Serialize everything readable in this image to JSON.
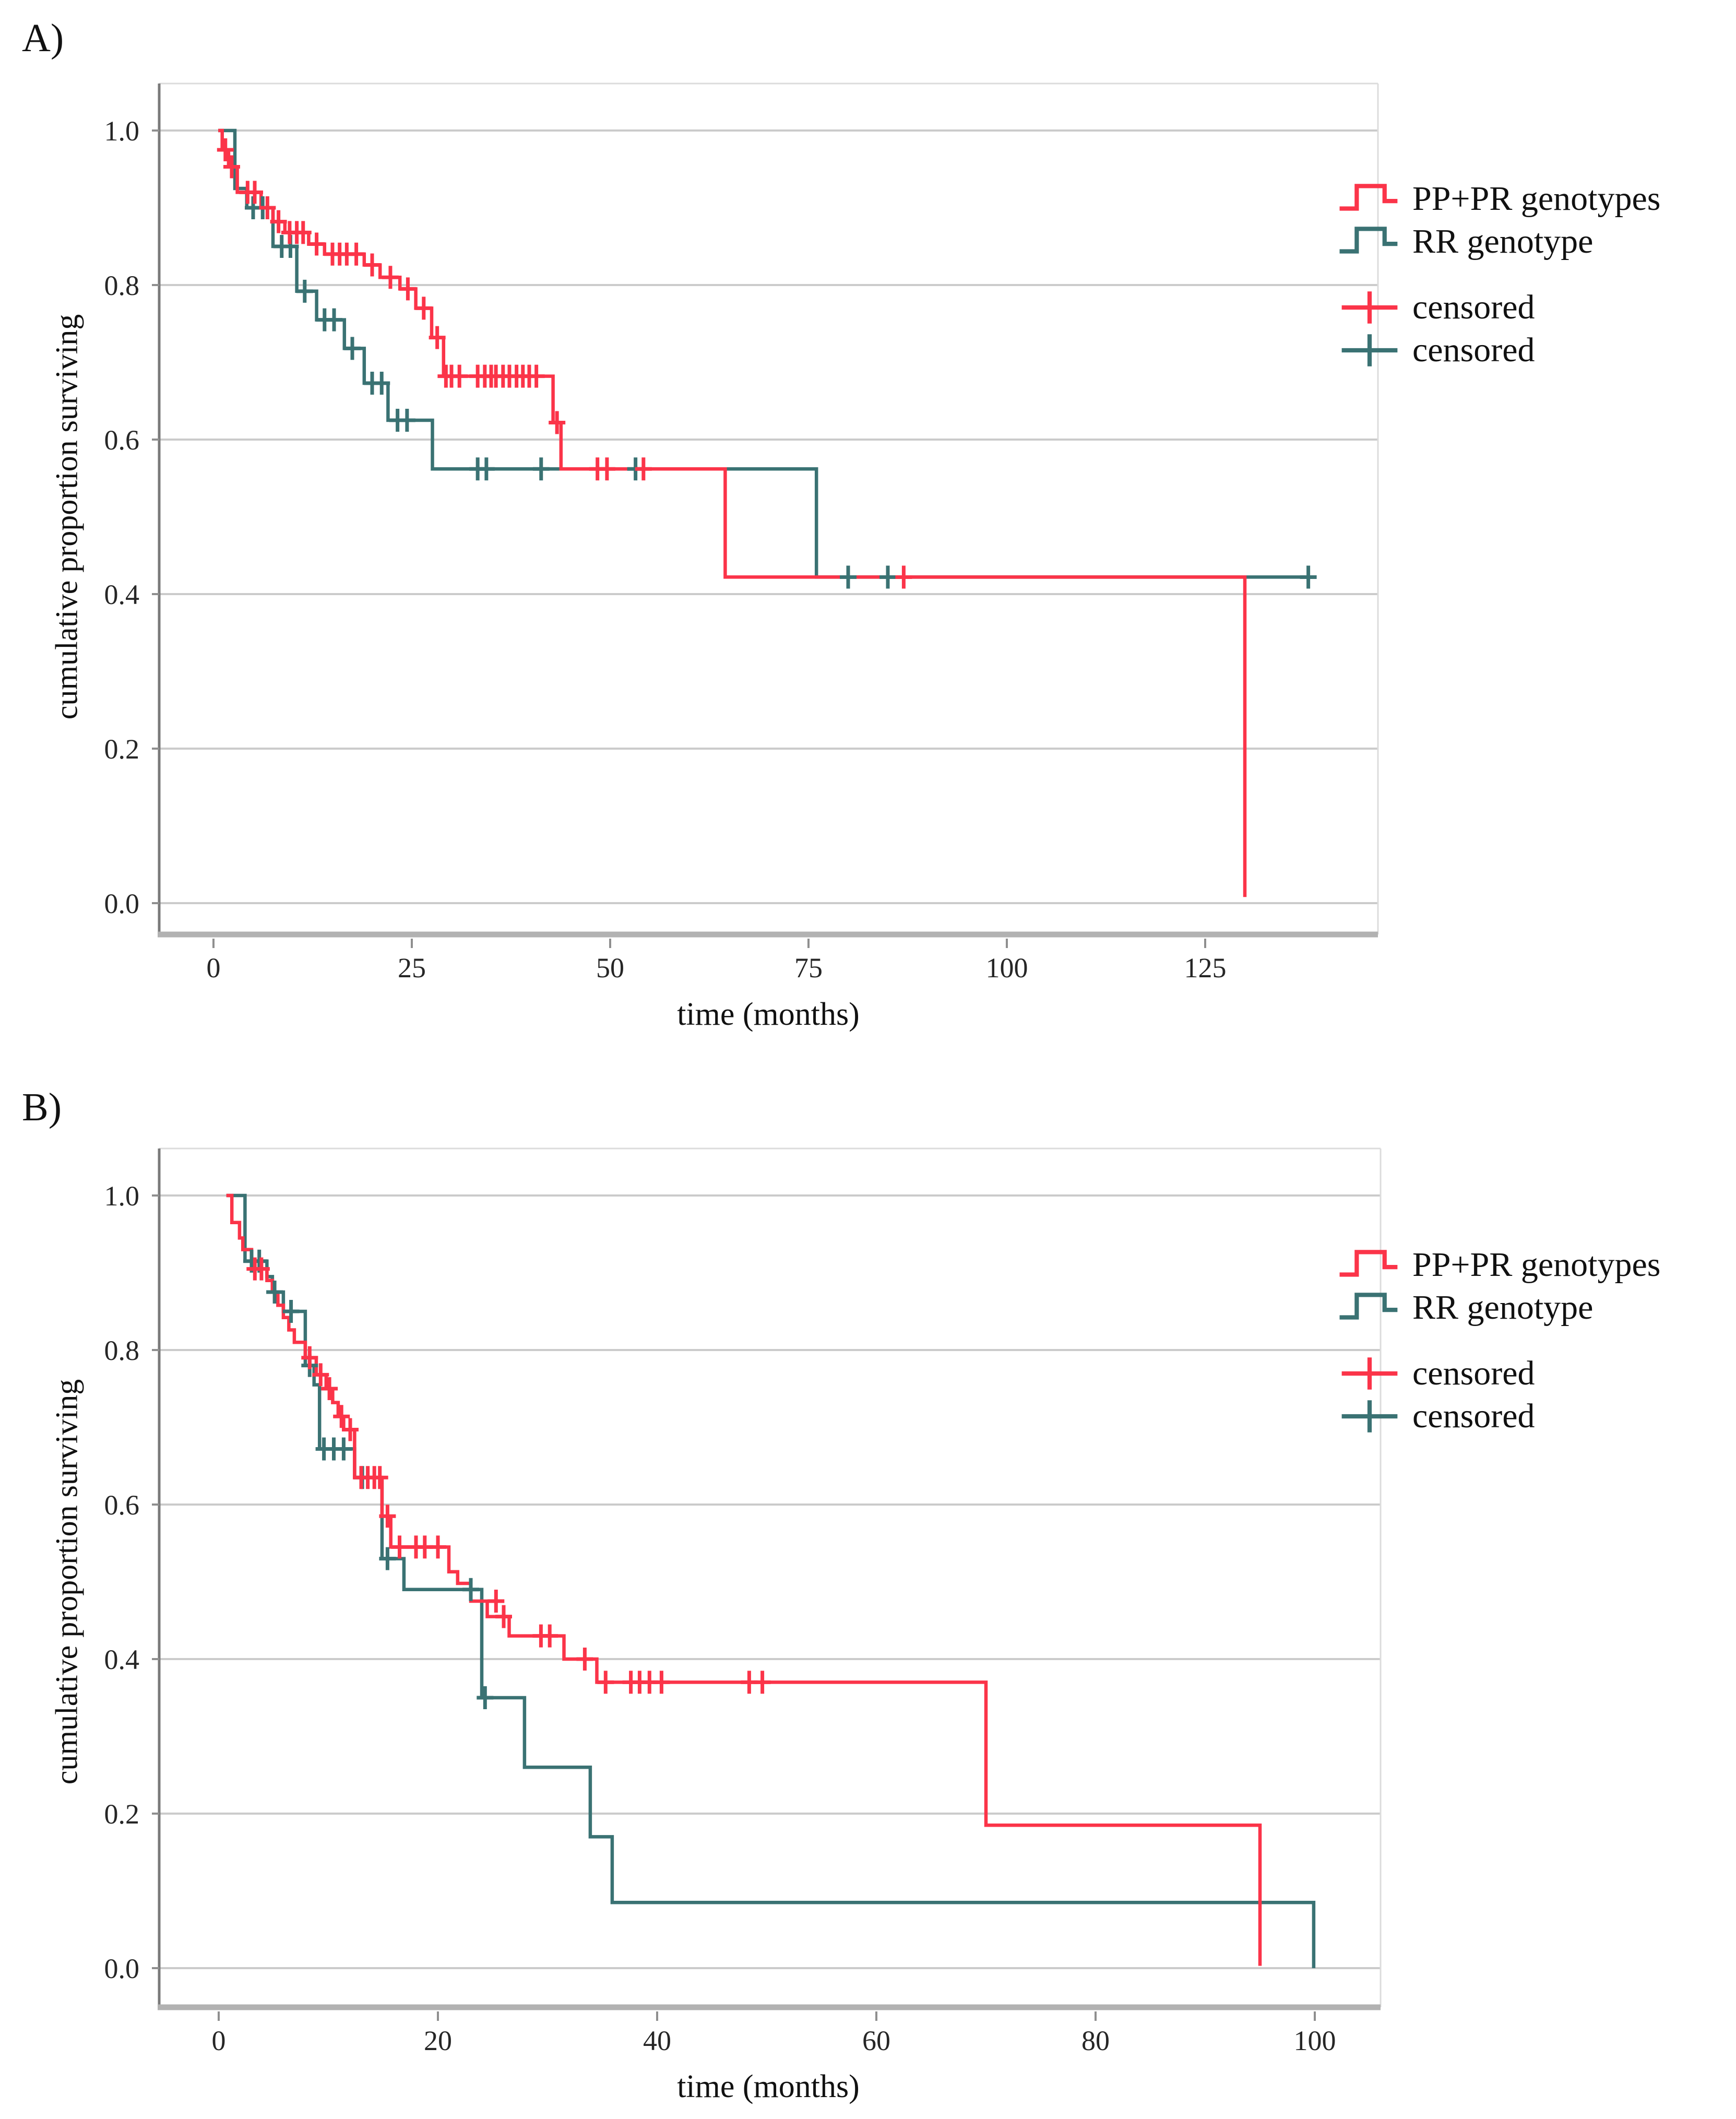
{
  "figure": {
    "panel_a_letter": "A)",
    "panel_b_letter": "B)"
  },
  "colors": {
    "pp_pr": "#fb3449",
    "rr": "#3a7273",
    "grid": "#cbcbcb",
    "frame": "#dcdcdc",
    "axis_y": "#7a7a7a",
    "axis_x": "#b2b2b2",
    "tick": "#8f8f8f",
    "text": "#262626"
  },
  "legend": {
    "items": [
      {
        "label": "PP+PR genotypes",
        "symbol": "step",
        "series": "pp_pr"
      },
      {
        "label": "RR genotype",
        "symbol": "step",
        "series": "rr"
      },
      {
        "label": "censored",
        "symbol": "plus",
        "series": "pp_pr"
      },
      {
        "label": "censored",
        "symbol": "plus",
        "series": "rr"
      }
    ]
  },
  "chart_data": [
    {
      "id": "A",
      "type": "line",
      "subtype": "kaplan-meier-step",
      "title": "A)",
      "xlabel": "time (months)",
      "ylabel": "cumulative proportion surviving",
      "x_ticks": [
        0,
        25,
        50,
        75,
        100,
        125
      ],
      "y_tick_labels": [
        "1.0",
        "0.8",
        "0.6",
        "0.4",
        "0.2",
        "0.0"
      ],
      "xlim": [
        0,
        147
      ],
      "ylim": [
        0.0,
        1.05
      ],
      "grid": true,
      "legend_position": "right-top",
      "series": [
        {
          "name": "PP+PR genotypes",
          "key": "pp_pr",
          "steps": [
            [
              0.6,
              1.0
            ],
            [
              1.1,
              1.0
            ],
            [
              1.1,
              0.975
            ],
            [
              1.9,
              0.975
            ],
            [
              1.9,
              0.953
            ],
            [
              3,
              0.953
            ],
            [
              3,
              0.92
            ],
            [
              6,
              0.92
            ],
            [
              6,
              0.9
            ],
            [
              7.5,
              0.9
            ],
            [
              7.5,
              0.882
            ],
            [
              9,
              0.882
            ],
            [
              9,
              0.868
            ],
            [
              12,
              0.868
            ],
            [
              12,
              0.853
            ],
            [
              14,
              0.853
            ],
            [
              14,
              0.84
            ],
            [
              19,
              0.84
            ],
            [
              19,
              0.826
            ],
            [
              21,
              0.826
            ],
            [
              21,
              0.81
            ],
            [
              23.5,
              0.81
            ],
            [
              23.5,
              0.795
            ],
            [
              25.5,
              0.795
            ],
            [
              25.5,
              0.77
            ],
            [
              27.5,
              0.77
            ],
            [
              27.5,
              0.732
            ],
            [
              29,
              0.732
            ],
            [
              29,
              0.682
            ],
            [
              42.8,
              0.682
            ],
            [
              42.8,
              0.622
            ],
            [
              43.8,
              0.622
            ],
            [
              43.8,
              0.562
            ],
            [
              64.5,
              0.562
            ],
            [
              64.5,
              0.422
            ],
            [
              130,
              0.422
            ],
            [
              130,
              0.008
            ]
          ],
          "censored": [
            [
              1.5,
              0.975
            ],
            [
              2.3,
              0.953
            ],
            [
              4.3,
              0.92
            ],
            [
              5.2,
              0.92
            ],
            [
              6.8,
              0.9
            ],
            [
              8.2,
              0.882
            ],
            [
              9.6,
              0.868
            ],
            [
              10.5,
              0.868
            ],
            [
              11.3,
              0.868
            ],
            [
              13,
              0.853
            ],
            [
              15,
              0.84
            ],
            [
              15.9,
              0.84
            ],
            [
              16.8,
              0.84
            ],
            [
              18,
              0.84
            ],
            [
              20,
              0.826
            ],
            [
              22.3,
              0.81
            ],
            [
              24.5,
              0.795
            ],
            [
              26.5,
              0.77
            ],
            [
              28.2,
              0.732
            ],
            [
              29.3,
              0.682
            ],
            [
              30,
              0.682
            ],
            [
              31,
              0.682
            ],
            [
              33.3,
              0.682
            ],
            [
              34.2,
              0.682
            ],
            [
              35,
              0.682
            ],
            [
              35.6,
              0.682
            ],
            [
              36.5,
              0.682
            ],
            [
              37.3,
              0.682
            ],
            [
              38.2,
              0.682
            ],
            [
              39,
              0.682
            ],
            [
              39.8,
              0.682
            ],
            [
              40.7,
              0.682
            ],
            [
              43.3,
              0.622
            ],
            [
              48.4,
              0.562
            ],
            [
              49.6,
              0.562
            ],
            [
              54.2,
              0.562
            ],
            [
              87,
              0.422
            ]
          ]
        },
        {
          "name": "RR genotype",
          "key": "rr",
          "steps": [
            [
              0.6,
              1.0
            ],
            [
              2.7,
              1.0
            ],
            [
              2.7,
              0.925
            ],
            [
              4.2,
              0.925
            ],
            [
              4.2,
              0.9
            ],
            [
              7.5,
              0.9
            ],
            [
              7.5,
              0.85
            ],
            [
              10.5,
              0.85
            ],
            [
              10.5,
              0.792
            ],
            [
              13,
              0.792
            ],
            [
              13,
              0.755
            ],
            [
              16.5,
              0.755
            ],
            [
              16.5,
              0.718
            ],
            [
              19,
              0.718
            ],
            [
              19,
              0.673
            ],
            [
              22,
              0.673
            ],
            [
              22,
              0.625
            ],
            [
              27.6,
              0.625
            ],
            [
              27.6,
              0.562
            ],
            [
              76,
              0.562
            ],
            [
              76,
              0.422
            ],
            [
              138,
              0.422
            ]
          ],
          "censored": [
            [
              5,
              0.9
            ],
            [
              6.2,
              0.9
            ],
            [
              8.6,
              0.85
            ],
            [
              9.7,
              0.85
            ],
            [
              11.5,
              0.792
            ],
            [
              14,
              0.755
            ],
            [
              15.2,
              0.755
            ],
            [
              17.5,
              0.718
            ],
            [
              20,
              0.673
            ],
            [
              21.2,
              0.673
            ],
            [
              23.2,
              0.625
            ],
            [
              24.4,
              0.625
            ],
            [
              33.3,
              0.562
            ],
            [
              34.4,
              0.562
            ],
            [
              41.3,
              0.562
            ],
            [
              53.2,
              0.562
            ],
            [
              80,
              0.422
            ],
            [
              85,
              0.422
            ],
            [
              138,
              0.422
            ]
          ]
        }
      ]
    },
    {
      "id": "B",
      "type": "line",
      "subtype": "kaplan-meier-step",
      "title": "B)",
      "xlabel": "time (months)",
      "ylabel": "cumulative proportion surviving",
      "x_ticks": [
        0,
        20,
        40,
        60,
        80,
        100
      ],
      "y_tick_labels": [
        "1.0",
        "0.8",
        "0.6",
        "0.4",
        "0.2",
        "0.0"
      ],
      "xlim": [
        0,
        106
      ],
      "ylim": [
        0.0,
        1.05
      ],
      "grid": true,
      "legend_position": "right-top",
      "series": [
        {
          "name": "PP+PR genotypes",
          "key": "pp_pr",
          "steps": [
            [
              0.7,
              1.0
            ],
            [
              1.2,
              1.0
            ],
            [
              1.2,
              0.965
            ],
            [
              1.9,
              0.965
            ],
            [
              1.9,
              0.945
            ],
            [
              2.2,
              0.945
            ],
            [
              2.2,
              0.93
            ],
            [
              3,
              0.93
            ],
            [
              3,
              0.905
            ],
            [
              4.4,
              0.905
            ],
            [
              4.4,
              0.89
            ],
            [
              4.9,
              0.89
            ],
            [
              4.9,
              0.875
            ],
            [
              5.4,
              0.875
            ],
            [
              5.4,
              0.858
            ],
            [
              5.9,
              0.858
            ],
            [
              5.9,
              0.842
            ],
            [
              6.4,
              0.842
            ],
            [
              6.4,
              0.826
            ],
            [
              6.9,
              0.826
            ],
            [
              6.9,
              0.81
            ],
            [
              7.9,
              0.81
            ],
            [
              7.9,
              0.79
            ],
            [
              8.9,
              0.79
            ],
            [
              8.9,
              0.768
            ],
            [
              9.8,
              0.768
            ],
            [
              9.8,
              0.75
            ],
            [
              10.4,
              0.75
            ],
            [
              10.4,
              0.732
            ],
            [
              10.9,
              0.732
            ],
            [
              10.9,
              0.714
            ],
            [
              11.4,
              0.714
            ],
            [
              11.4,
              0.697
            ],
            [
              12.4,
              0.697
            ],
            [
              12.4,
              0.635
            ],
            [
              14.9,
              0.635
            ],
            [
              14.9,
              0.585
            ],
            [
              15.7,
              0.585
            ],
            [
              15.7,
              0.545
            ],
            [
              21,
              0.545
            ],
            [
              21,
              0.513
            ],
            [
              21.8,
              0.513
            ],
            [
              21.8,
              0.498
            ],
            [
              23,
              0.498
            ],
            [
              23,
              0.475
            ],
            [
              24.5,
              0.475
            ],
            [
              24.5,
              0.455
            ],
            [
              26.5,
              0.455
            ],
            [
              26.5,
              0.43
            ],
            [
              31.5,
              0.43
            ],
            [
              31.5,
              0.4
            ],
            [
              34.5,
              0.4
            ],
            [
              34.5,
              0.37
            ],
            [
              70,
              0.37
            ],
            [
              70,
              0.185
            ],
            [
              95,
              0.185
            ],
            [
              95,
              0.003
            ]
          ],
          "censored": [
            [
              3.3,
              0.905
            ],
            [
              3.9,
              0.905
            ],
            [
              8.3,
              0.79
            ],
            [
              9.3,
              0.768
            ],
            [
              10.1,
              0.75
            ],
            [
              11.2,
              0.714
            ],
            [
              12,
              0.697
            ],
            [
              13,
              0.635
            ],
            [
              13.6,
              0.635
            ],
            [
              14.2,
              0.635
            ],
            [
              14.7,
              0.635
            ],
            [
              15.4,
              0.585
            ],
            [
              16.5,
              0.545
            ],
            [
              18,
              0.545
            ],
            [
              18.8,
              0.545
            ],
            [
              20,
              0.545
            ],
            [
              25.3,
              0.475
            ],
            [
              26,
              0.455
            ],
            [
              29.4,
              0.43
            ],
            [
              30.2,
              0.43
            ],
            [
              33.4,
              0.4
            ],
            [
              35.3,
              0.37
            ],
            [
              37.6,
              0.37
            ],
            [
              38.4,
              0.37
            ],
            [
              39.3,
              0.37
            ],
            [
              40.4,
              0.37
            ],
            [
              48.4,
              0.37
            ],
            [
              49.6,
              0.37
            ]
          ]
        },
        {
          "name": "RR genotype",
          "key": "rr",
          "steps": [
            [
              0.7,
              1.0
            ],
            [
              2.4,
              1.0
            ],
            [
              2.4,
              0.915
            ],
            [
              4.4,
              0.915
            ],
            [
              4.4,
              0.895
            ],
            [
              4.9,
              0.895
            ],
            [
              4.9,
              0.875
            ],
            [
              5.9,
              0.875
            ],
            [
              5.9,
              0.85
            ],
            [
              7.9,
              0.85
            ],
            [
              7.9,
              0.78
            ],
            [
              8.7,
              0.78
            ],
            [
              8.7,
              0.755
            ],
            [
              9.2,
              0.755
            ],
            [
              9.2,
              0.672
            ],
            [
              12.4,
              0.672
            ],
            [
              12.4,
              0.635
            ],
            [
              14.9,
              0.635
            ],
            [
              14.9,
              0.53
            ],
            [
              16.9,
              0.53
            ],
            [
              16.9,
              0.49
            ],
            [
              24,
              0.49
            ],
            [
              24,
              0.35
            ],
            [
              27.9,
              0.35
            ],
            [
              27.9,
              0.26
            ],
            [
              33.9,
              0.26
            ],
            [
              33.9,
              0.17
            ],
            [
              35.9,
              0.17
            ],
            [
              35.9,
              0.085
            ],
            [
              99.9,
              0.085
            ],
            [
              99.9,
              0.0
            ]
          ],
          "censored": [
            [
              3,
              0.915
            ],
            [
              3.7,
              0.915
            ],
            [
              5.1,
              0.875
            ],
            [
              6.6,
              0.85
            ],
            [
              8.3,
              0.78
            ],
            [
              9.6,
              0.672
            ],
            [
              10.5,
              0.672
            ],
            [
              11.4,
              0.672
            ],
            [
              13.1,
              0.635
            ],
            [
              15.4,
              0.53
            ],
            [
              23,
              0.49
            ],
            [
              24.3,
              0.35
            ]
          ]
        }
      ]
    }
  ]
}
